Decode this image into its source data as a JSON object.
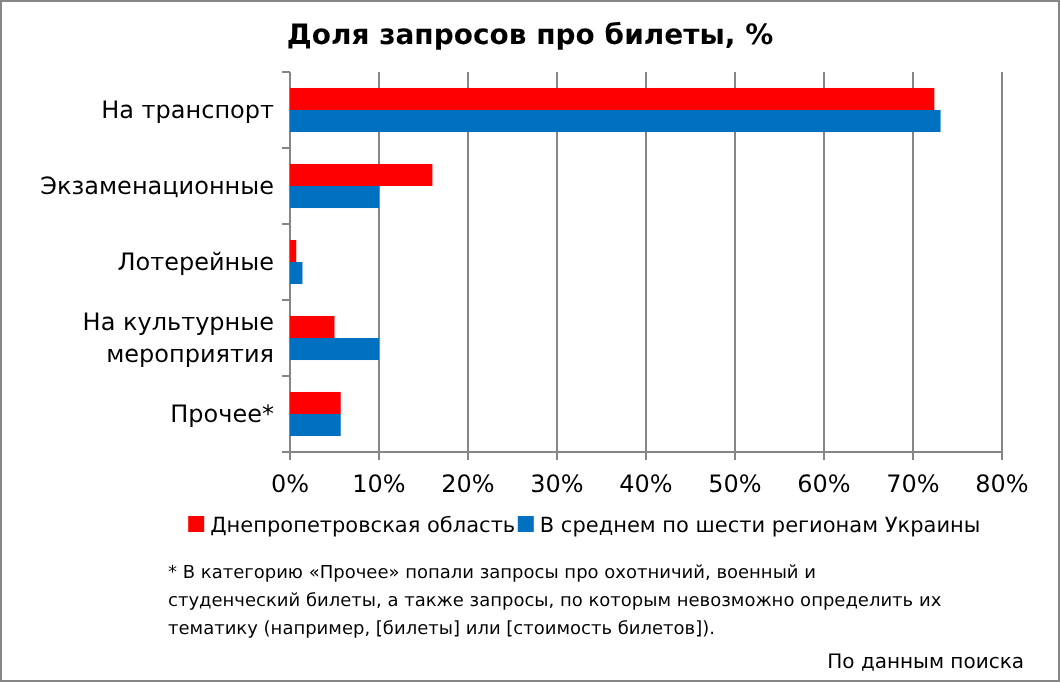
{
  "chart_data": {
    "type": "bar",
    "orientation": "horizontal",
    "title": "Доля запросов про билеты, %",
    "categories": [
      "На транспорт",
      "Экзаменационные",
      "Лотерейные",
      "На культурные мероприятия",
      "Прочее*"
    ],
    "series": [
      {
        "name": "Днепропетровская область",
        "color": "#ff0000",
        "values": [
          72.4,
          16,
          0.7,
          5,
          5.7
        ]
      },
      {
        "name": "В среднем по шести регионам Украины",
        "color": "#0070c0",
        "values": [
          73.1,
          10,
          1.4,
          10,
          5.7
        ]
      }
    ],
    "xlim": [
      0,
      80
    ],
    "xticks": [
      {
        "value": 0,
        "label": "0%"
      },
      {
        "value": 10,
        "label": "10%"
      },
      {
        "value": 20,
        "label": "20%"
      },
      {
        "value": 30,
        "label": "30%"
      },
      {
        "value": 40,
        "label": "40%"
      },
      {
        "value": 50,
        "label": "50%"
      },
      {
        "value": 60,
        "label": "60%"
      },
      {
        "value": 70,
        "label": "70%"
      },
      {
        "value": 80,
        "label": "80%"
      }
    ],
    "grid": "x",
    "legend": "bottom",
    "annotations": [
      "* В категорию «Прочее» попали запросы про охотничий, военный и студенческий билеты, а также запросы, по которым невозможно определить их тематику (например, [билеты] или [стоимость билетов]).",
      "По данным поиска"
    ]
  }
}
